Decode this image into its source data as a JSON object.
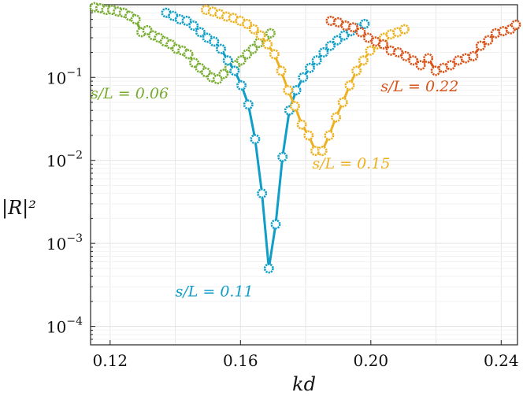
{
  "chart_data": {
    "type": "line",
    "xlabel": "kd",
    "ylabel": "|R|²",
    "xlim": [
      0.114,
      0.245
    ],
    "ylim": [
      6e-05,
      0.75
    ],
    "yscale": "log",
    "grid": true,
    "x_ticks": [
      {
        "value": 0.12,
        "label": "0.12"
      },
      {
        "value": 0.16,
        "label": "0.16"
      },
      {
        "value": 0.2,
        "label": "0.20"
      },
      {
        "value": 0.24,
        "label": "0.24"
      }
    ],
    "y_ticks": [
      {
        "value": 0.0001,
        "base": "10",
        "exp": "−4"
      },
      {
        "value": 0.001,
        "base": "10",
        "exp": "−3"
      },
      {
        "value": 0.01,
        "base": "10",
        "exp": "−2"
      },
      {
        "value": 0.1,
        "base": "10",
        "exp": "−1"
      }
    ],
    "series": [
      {
        "name": "s/L = 0.06",
        "color": "#77ac30",
        "x": [
          0.1152,
          0.117,
          0.1188,
          0.1206,
          0.1224,
          0.1242,
          0.126,
          0.1278,
          0.1296,
          0.1314,
          0.1332,
          0.135,
          0.1368,
          0.1386,
          0.1404,
          0.1422,
          0.144,
          0.1458,
          0.1476,
          0.1494,
          0.1512,
          0.153,
          0.1548,
          0.1566,
          0.1584,
          0.1602,
          0.162,
          0.1638,
          0.1656,
          0.1674,
          0.1692
        ],
        "y": [
          0.7,
          0.68,
          0.65,
          0.65,
          0.62,
          0.6,
          0.55,
          0.5,
          0.35,
          0.37,
          0.32,
          0.3,
          0.27,
          0.25,
          0.22,
          0.21,
          0.19,
          0.15,
          0.13,
          0.115,
          0.1,
          0.095,
          0.11,
          0.13,
          0.14,
          0.16,
          0.19,
          0.22,
          0.26,
          0.3,
          0.34
        ]
      },
      {
        "name": "s/L = 0.11",
        "color": "#0f9ec8",
        "x": [
          0.1372,
          0.1393,
          0.1414,
          0.1435,
          0.1456,
          0.1477,
          0.1498,
          0.1519,
          0.154,
          0.1561,
          0.1582,
          0.1603,
          0.1624,
          0.1645,
          0.1666,
          0.1687,
          0.1708,
          0.1729,
          0.175,
          0.1771,
          0.1792,
          0.1813,
          0.1834,
          0.1855,
          0.1876,
          0.1897,
          0.1918,
          0.1939,
          0.196,
          0.1981
        ],
        "y": [
          0.6,
          0.55,
          0.5,
          0.48,
          0.42,
          0.35,
          0.3,
          0.27,
          0.22,
          0.16,
          0.12,
          0.08,
          0.047,
          0.018,
          0.004,
          0.0005,
          0.0017,
          0.011,
          0.04,
          0.07,
          0.1,
          0.13,
          0.16,
          0.2,
          0.24,
          0.28,
          0.32,
          0.36,
          0.39,
          0.44
        ]
      },
      {
        "name": "s/L = 0.15",
        "color": "#edb120",
        "x": [
          0.1494,
          0.1515,
          0.1536,
          0.1557,
          0.1578,
          0.1599,
          0.162,
          0.1641,
          0.1662,
          0.1683,
          0.1704,
          0.1725,
          0.1746,
          0.1767,
          0.1788,
          0.1809,
          0.183,
          0.1851,
          0.1872,
          0.1893,
          0.1914,
          0.1935,
          0.1956,
          0.1977,
          0.1998,
          0.2019,
          0.204,
          0.2061,
          0.2082,
          0.2103
        ],
        "y": [
          0.65,
          0.62,
          0.58,
          0.54,
          0.52,
          0.48,
          0.44,
          0.38,
          0.32,
          0.25,
          0.19,
          0.12,
          0.07,
          0.045,
          0.027,
          0.02,
          0.013,
          0.013,
          0.02,
          0.033,
          0.05,
          0.08,
          0.12,
          0.16,
          0.21,
          0.25,
          0.3,
          0.33,
          0.35,
          0.38
        ]
      },
      {
        "name": "s/L = 0.22",
        "color": "#d95319",
        "x": [
          0.1877,
          0.19,
          0.1923,
          0.1946,
          0.1969,
          0.1992,
          0.2015,
          0.2038,
          0.2061,
          0.2084,
          0.2107,
          0.213,
          0.2153,
          0.2176,
          0.2199,
          0.2222,
          0.2245,
          0.2268,
          0.2291,
          0.2314,
          0.2337,
          0.236,
          0.2383,
          0.2406,
          0.2429,
          0.2445
        ],
        "y": [
          0.48,
          0.46,
          0.42,
          0.4,
          0.35,
          0.3,
          0.27,
          0.25,
          0.21,
          0.2,
          0.18,
          0.16,
          0.14,
          0.17,
          0.12,
          0.13,
          0.14,
          0.16,
          0.17,
          0.18,
          0.24,
          0.28,
          0.34,
          0.36,
          0.38,
          0.43
        ]
      }
    ],
    "annotations": [
      {
        "series": 0,
        "text": "s/L = 0.06",
        "x": 0.114,
        "y": 0.056
      },
      {
        "series": 1,
        "text": "s/L = 0.11",
        "x": 0.14,
        "y": 0.00023
      },
      {
        "series": 2,
        "text": "s/L = 0.15",
        "x": 0.182,
        "y": 0.008
      },
      {
        "series": 3,
        "text": "s/L = 0.22",
        "x": 0.203,
        "y": 0.068
      }
    ]
  }
}
